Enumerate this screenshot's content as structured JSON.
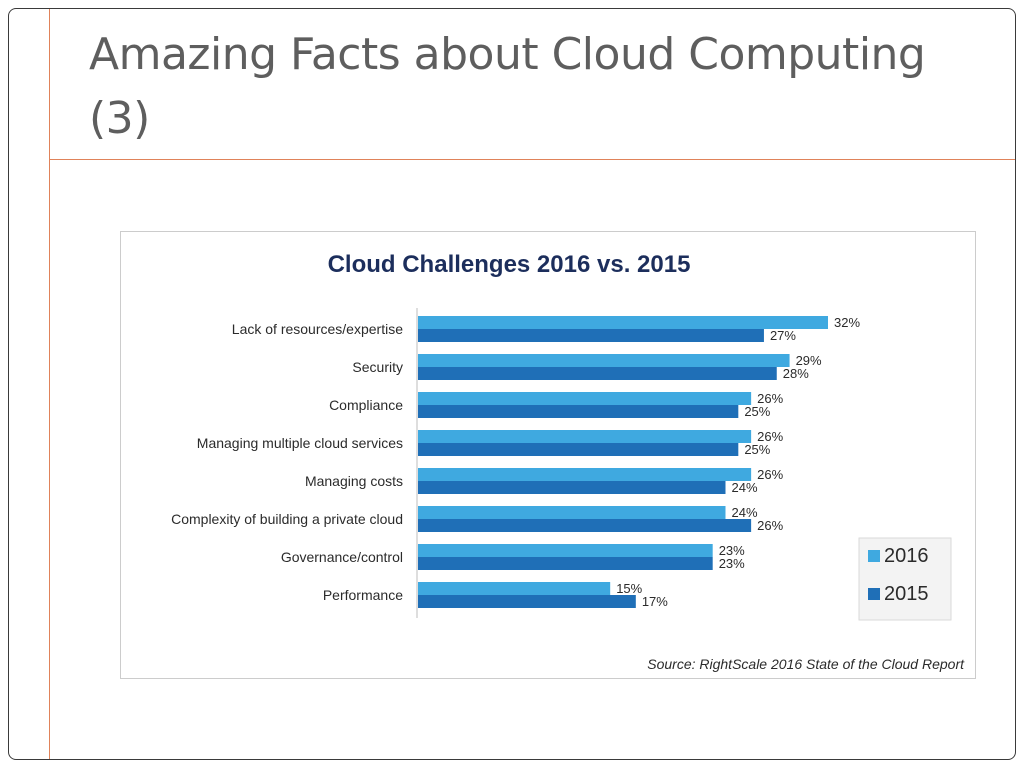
{
  "slide": {
    "title": "Amazing Facts about Cloud Computing (3)"
  },
  "chart_data": {
    "type": "bar",
    "orientation": "horizontal",
    "title": "Cloud Challenges 2016 vs. 2015",
    "source": "Source: RightScale 2016 State of the Cloud Report",
    "categories": [
      "Lack of resources/expertise",
      "Security",
      "Compliance",
      "Managing multiple cloud services",
      "Managing costs",
      "Complexity of building a private cloud",
      "Governance/control",
      "Performance"
    ],
    "series": [
      {
        "name": "2016",
        "color": "#3fa9e0",
        "values": [
          32,
          29,
          26,
          26,
          26,
          24,
          23,
          15
        ],
        "labels": [
          "32%",
          "29%",
          "26%",
          "26%",
          "26%",
          "24%",
          "23%",
          "15%"
        ]
      },
      {
        "name": "2015",
        "color": "#1f6fb7",
        "values": [
          27,
          28,
          25,
          25,
          24,
          26,
          23,
          17
        ],
        "labels": [
          "27%",
          "28%",
          "25%",
          "25%",
          "24%",
          "26%",
          "23%",
          "17%"
        ]
      }
    ],
    "xlim": [
      0,
      32
    ],
    "grid": false,
    "legend": "bottom-right"
  }
}
